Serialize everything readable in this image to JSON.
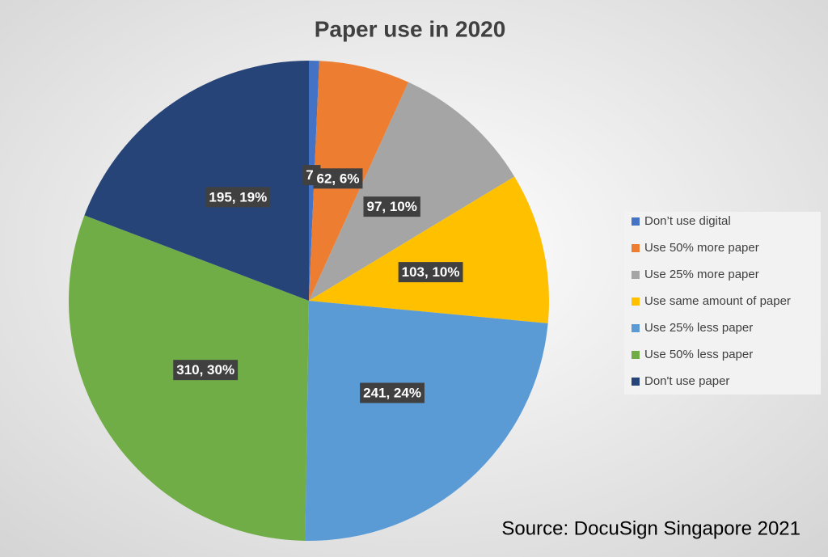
{
  "chart_data": {
    "type": "pie",
    "title": "Paper use in 2020",
    "categories": [
      "Don’t use digital",
      "Use 50% more paper",
      "Use 25% more paper",
      "Use same amount of paper",
      "Use 25% less paper",
      "Use 50% less paper",
      "Don't use paper"
    ],
    "values": [
      7,
      62,
      97,
      103,
      241,
      310,
      195
    ],
    "value_labels": [
      "7,",
      "62, 6%",
      "97, 10%",
      "103, 10%",
      "241, 24%",
      "310, 30%",
      "195, 19%"
    ],
    "colors": [
      "#4472c4",
      "#ed7d31",
      "#a5a5a5",
      "#ffc000",
      "#5b9bd5",
      "#70ad47",
      "#264478"
    ],
    "legend": "right",
    "source": "Source: DocuSign Singapore 2021"
  }
}
